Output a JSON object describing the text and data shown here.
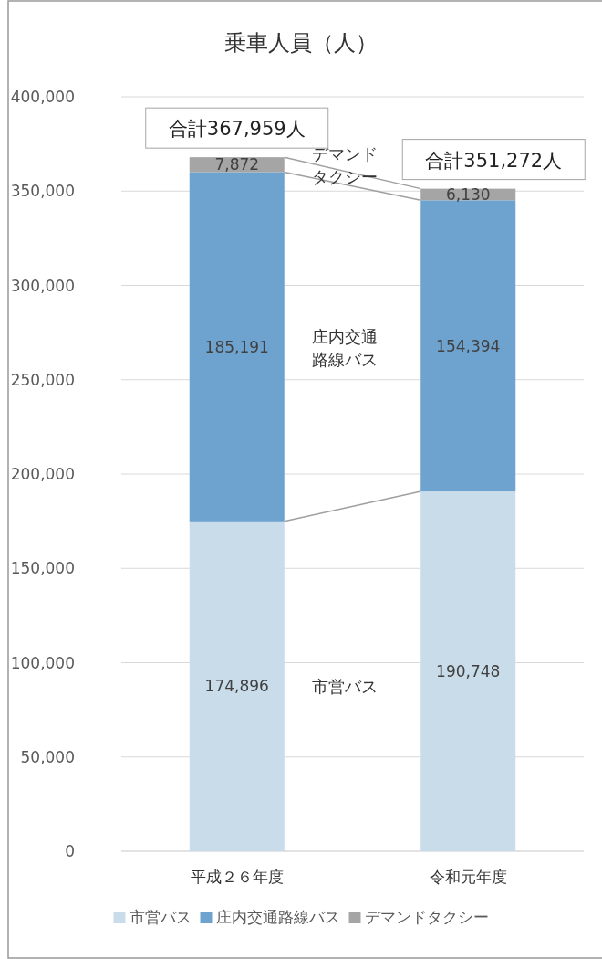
{
  "chart_data": {
    "type": "bar",
    "title": "乗車人員（人）",
    "stacked": true,
    "categories": [
      "平成２６年度",
      "令和元年度"
    ],
    "series": [
      {
        "name": "市営バス",
        "color": "#c9dcea",
        "values": [
          174896,
          190748
        ],
        "value_labels": [
          "174,896",
          "190,748"
        ]
      },
      {
        "name": "庄内交通路線バス",
        "color": "#6fa3cf",
        "values": [
          185191,
          154394
        ],
        "value_labels": [
          "185,191",
          "154,394"
        ]
      },
      {
        "name": "デマンドタクシー",
        "color": "#a5a5a5",
        "values": [
          7872,
          6130
        ],
        "value_labels": [
          "7,872",
          "6,130"
        ]
      }
    ],
    "totals": [
      "合計367,959人",
      "合計351,272人"
    ],
    "ylim": [
      0,
      400000
    ],
    "yticks": [
      0,
      {
        "value": 50000,
        "label": "50,000"
      },
      {
        "value": 100000,
        "label": "100,000"
      },
      {
        "value": 150000,
        "label": "150,000"
      },
      {
        "value": 200000,
        "label": "200,000"
      },
      {
        "value": 250000,
        "label": "250,000"
      },
      {
        "value": 300000,
        "label": "300,000"
      },
      {
        "value": 350000,
        "label": "350,000"
      },
      {
        "value": 400000,
        "label": "400,000"
      }
    ],
    "annotations": [
      "デマンドタクシー",
      "庄内交通路線バス",
      "市営バス"
    ],
    "grid": "y",
    "legend": "bottom"
  }
}
